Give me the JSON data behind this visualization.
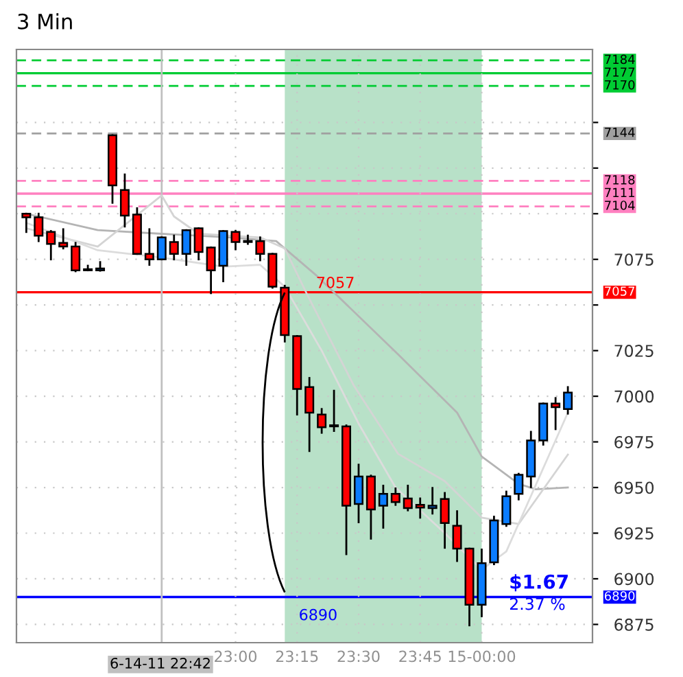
{
  "chart_data": {
    "type": "candlestick",
    "title": "3 Min",
    "x": [
      22.15,
      22.2,
      22.25,
      22.3,
      22.35,
      22.4,
      22.45,
      22.5,
      22.55,
      22.6,
      22.65,
      22.7,
      22.75,
      22.8,
      22.85,
      22.9,
      22.95,
      23.0,
      23.05,
      23.1,
      23.15,
      23.2,
      23.25,
      23.3,
      23.35,
      23.4,
      23.45,
      23.5,
      23.55,
      23.6,
      23.65,
      23.7,
      23.75,
      23.8,
      23.85,
      23.9,
      23.95,
      24.0,
      24.05,
      24.1,
      24.15,
      24.2,
      24.25,
      24.3,
      24.35
    ],
    "ohlc": [
      [
        7100,
        7100,
        7090,
        7098
      ],
      [
        7098,
        7100,
        7085,
        7088
      ],
      [
        7090,
        7090.5,
        7075,
        7083.5
      ],
      [
        7084,
        7091.5,
        7081,
        7082
      ],
      [
        7082,
        7084,
        7068.5,
        7069
      ],
      [
        7069.5,
        7071.5,
        7069,
        7069
      ],
      [
        7069,
        7073.5,
        7068.8,
        7070
      ],
      [
        7143,
        7143,
        7106,
        7115.5
      ],
      [
        7113,
        7121.5,
        7093,
        7099
      ],
      [
        7099.5,
        7103,
        7078,
        7078
      ],
      [
        7078,
        7091.5,
        7072,
        7075
      ],
      [
        7075,
        7087,
        7075,
        7087
      ],
      [
        7084.5,
        7088,
        7075,
        7078
      ],
      [
        7078,
        7091,
        7072,
        7091
      ],
      [
        7092,
        7092,
        7075,
        7079
      ],
      [
        7081.5,
        7081.5,
        7056.5,
        7069
      ],
      [
        7071.5,
        7090.5,
        7063,
        7090.5
      ],
      [
        7090,
        7090.5,
        7080.5,
        7084.5
      ],
      [
        7084.5,
        7088,
        7083.5,
        7085
      ],
      [
        7085,
        7087,
        7074.5,
        7078
      ],
      [
        7078,
        7078,
        7059.5,
        7060
      ],
      [
        7059.5,
        7060.5,
        7030,
        7033.5
      ],
      [
        7033,
        7033,
        6990,
        7004
      ],
      [
        7005,
        7010,
        6970,
        6991
      ],
      [
        6990,
        6993,
        6980,
        6983
      ],
      [
        6984,
        7003,
        6981,
        6983.5
      ],
      [
        6983.5,
        6984,
        6913.5,
        6940
      ],
      [
        6941,
        6962.5,
        6931,
        6956
      ],
      [
        6956,
        6956.5,
        6922,
        6938
      ],
      [
        6940,
        6951,
        6928,
        6946.5
      ],
      [
        6946.5,
        6949.5,
        6940.5,
        6942
      ],
      [
        6944,
        6951,
        6937.5,
        6938.75
      ],
      [
        6940.5,
        6944,
        6933.5,
        6939
      ],
      [
        6938.75,
        6949.75,
        6935.75,
        6940
      ],
      [
        6943.75,
        6947,
        6917,
        6930.5
      ],
      [
        6929,
        6937,
        6909.75,
        6916.5
      ],
      [
        6916.5,
        6916.5,
        6874.5,
        6885.75
      ],
      [
        6885.75,
        6916,
        6879.5,
        6908.5
      ],
      [
        6909,
        6934,
        6908,
        6932
      ],
      [
        6930,
        6947.75,
        6929,
        6945.25
      ],
      [
        6946.5,
        6957.5,
        6943.5,
        6957
      ],
      [
        6956,
        6980.5,
        6950.25,
        6975.75
      ],
      [
        6975.75,
        6996,
        6973.5,
        6996
      ],
      [
        6996,
        6999,
        6982,
        6994
      ],
      [
        6993,
        7005,
        6990.5,
        7002
      ]
    ],
    "colors": [
      "#ff0000",
      "#ff0000",
      "#ff0000",
      "#ff0000",
      "#ff0000",
      "#ff0000",
      "#0a7cff",
      "#ff0000",
      "#ff0000",
      "#ff0000",
      "#ff0000",
      "#0a7cff",
      "#ff0000",
      "#0a7cff",
      "#ff0000",
      "#ff0000",
      "#0a7cff",
      "#ff0000",
      "#0a7cff",
      "#ff0000",
      "#ff0000",
      "#ff0000",
      "#ff0000",
      "#ff0000",
      "#ff0000",
      "#ff0000",
      "#ff0000",
      "#0a7cff",
      "#ff0000",
      "#0a7cff",
      "#ff0000",
      "#ff0000",
      "#ff0000",
      "#0a7cff",
      "#ff0000",
      "#ff0000",
      "#ff0000",
      "#0a7cff",
      "#0a7cff",
      "#0a7cff",
      "#0a7cff",
      "#0a7cff",
      "#0a7cff",
      "#ff0000",
      "#0a7cff"
    ],
    "series": [
      {
        "type": "line",
        "color": "#b4b4b4",
        "x": [
          22.15,
          22.44,
          22.7,
          22.98,
          23.165,
          23.33,
          23.66,
          23.9,
          24.0,
          24.15,
          24.22,
          24.35
        ],
        "values": [
          7100,
          7091,
          7089,
          7087,
          7085,
          7066,
          7023,
          6991,
          6967,
          6952,
          6949,
          6950
        ]
      },
      {
        "type": "line",
        "color": "#d4d4d4",
        "x": [
          22.15,
          22.44,
          22.7,
          22.75,
          22.85,
          23.1,
          23.2,
          23.29,
          23.48,
          23.66,
          23.85,
          24.0,
          24.15,
          24.35
        ],
        "values": [
          7092,
          7082,
          7110,
          7098.5,
          7089,
          7087,
          7081,
          7056,
          7006,
          6968.5,
          6953.5,
          6933.5,
          6930,
          6968
        ]
      },
      {
        "type": "line",
        "color": "#dcdcdc",
        "x": [
          22.15,
          22.44,
          22.7,
          22.95,
          23.1,
          23.2,
          23.35,
          23.5,
          23.65,
          23.85,
          24.0,
          24.1,
          24.35
        ],
        "values": [
          7095,
          7080,
          7076,
          7071,
          7072,
          7060,
          7025,
          6985,
          6950,
          6925,
          6905,
          6915,
          6991
        ]
      }
    ],
    "xlim": [
      22.11,
      24.45
    ],
    "ylim": [
      6865,
      7190
    ],
    "xticks": [
      {
        "value": 23.0,
        "label": "23:00"
      },
      {
        "value": 23.25,
        "label": "23:15"
      },
      {
        "value": 23.5,
        "label": "23:30"
      },
      {
        "value": 23.75,
        "label": "23:45"
      },
      {
        "value": 24.0,
        "label": "15-00:00"
      }
    ],
    "yticks": [
      6875,
      6900,
      6925,
      6950,
      6975,
      7000,
      7025,
      {
        "value": 7050,
        "label": null
      },
      7075,
      {
        "value": 7100,
        "label": null
      },
      {
        "value": 7125,
        "label": null
      },
      {
        "value": 7150,
        "label": null
      }
    ],
    "grid": true,
    "ref_lines": [
      {
        "axis": "y",
        "value": 7184,
        "label": "7184",
        "color": "#00cc33",
        "line_style": "dashed"
      },
      {
        "axis": "y",
        "value": 7177,
        "label": "7177",
        "color": "#00cc33",
        "line_style": "solid"
      },
      {
        "axis": "y",
        "value": 7170,
        "label": "7170",
        "color": "#00cc33",
        "line_style": "dashed"
      },
      {
        "axis": "y",
        "value": 7144,
        "label": "7144",
        "color": "#a0a0a0",
        "line_style": "dashed"
      },
      {
        "axis": "y",
        "value": 7118,
        "label": "7118",
        "color": "#ff80c0",
        "line_style": "dashed"
      },
      {
        "axis": "y",
        "value": 7111,
        "label": "7111",
        "color": "#ff80c0",
        "line_style": "solid"
      },
      {
        "axis": "y",
        "value": 7104,
        "label": "7104",
        "color": "#ff80c0",
        "line_style": "dashed"
      },
      {
        "axis": "y",
        "value": 7057,
        "label": "7057",
        "color": "#ff0000",
        "line_style": "solid"
      },
      {
        "axis": "y",
        "value": 6890,
        "label": "6890",
        "color": "#0000ff",
        "line_style": "solid"
      },
      {
        "axis": "x",
        "value": 22.7,
        "color": "#c0c0c0",
        "line_style": "solid"
      }
    ],
    "bands": [
      {
        "axis": "x",
        "from": 23.2,
        "to": 24.0,
        "color": "#9ad4b0"
      }
    ],
    "annotations": [
      "7057",
      "6890",
      "$1.67",
      "2.37 %",
      "6-14-11 22:42"
    ]
  }
}
